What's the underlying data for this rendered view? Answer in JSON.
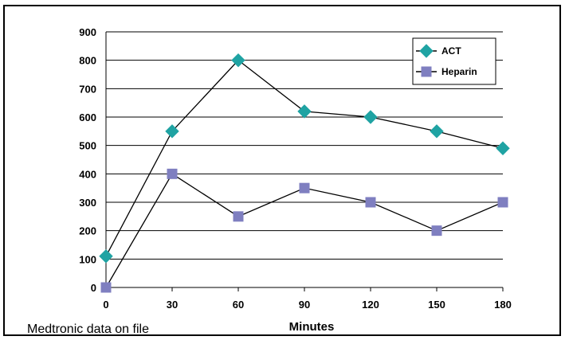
{
  "footnote": "Medtronic data on file",
  "colors": {
    "act": "#1FA3A3",
    "heparin": "#7F7FC0",
    "line": "#000000",
    "grid": "#000000"
  },
  "chart_data": {
    "type": "line",
    "x": [
      0,
      30,
      60,
      90,
      120,
      150,
      180
    ],
    "tick_labels_x": [
      "0",
      "30",
      "60",
      "90",
      "120",
      "150",
      "180"
    ],
    "tick_labels_y": [
      "0",
      "100",
      "200",
      "300",
      "400",
      "500",
      "600",
      "700",
      "800",
      "900"
    ],
    "xlabel": "Minutes",
    "ylabel": "",
    "title": "",
    "ylim": [
      0,
      900
    ],
    "grid": true,
    "legend": "top-right",
    "series": [
      {
        "name": "ACT",
        "marker": "diamond",
        "values": [
          110,
          550,
          800,
          620,
          600,
          550,
          490
        ]
      },
      {
        "name": "Heparin",
        "marker": "square",
        "values": [
          0,
          400,
          250,
          350,
          300,
          200,
          300
        ]
      }
    ]
  }
}
